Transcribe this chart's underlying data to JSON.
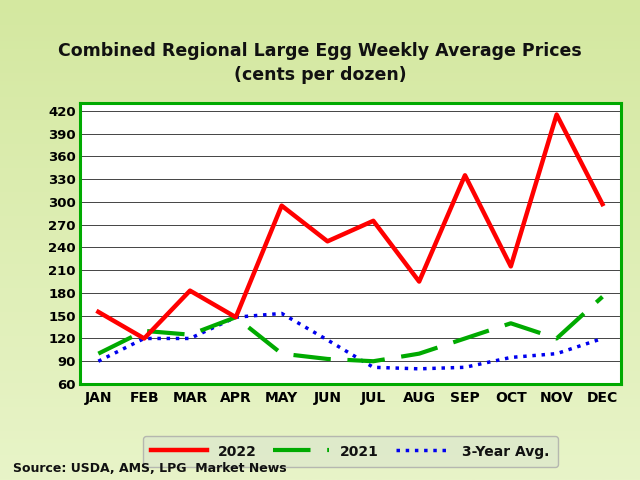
{
  "title_line1": "Combined Regional Large Egg Weekly Average Prices",
  "title_line2": "(cents per dozen)",
  "source": "Source: USDA, AMS, LPG  Market News",
  "months": [
    "JAN",
    "FEB",
    "MAR",
    "APR",
    "MAY",
    "JUN",
    "JUL",
    "AUG",
    "SEP",
    "OCT",
    "NOV",
    "DEC"
  ],
  "data_2022": [
    155,
    120,
    183,
    148,
    295,
    248,
    275,
    195,
    335,
    215,
    415,
    297
  ],
  "data_2021": [
    100,
    130,
    125,
    148,
    100,
    93,
    90,
    100,
    120,
    140,
    120,
    175
  ],
  "data_3yr": [
    90,
    120,
    120,
    148,
    153,
    118,
    82,
    80,
    82,
    95,
    100,
    120
  ],
  "color_2022": "#FF0000",
  "color_2021": "#00AA00",
  "color_3yr": "#0000EE",
  "ylim": [
    60,
    430
  ],
  "yticks": [
    60,
    90,
    120,
    150,
    180,
    210,
    240,
    270,
    300,
    330,
    360,
    390,
    420
  ],
  "bg_outer_top": "#d4e8a0",
  "bg_outer_bottom": "#e8f0c0",
  "bg_chart": "#FFFFFF",
  "legend_label_2022": "2022",
  "legend_label_2021": "2021",
  "legend_label_3yr": "3-Year Avg.",
  "spine_color": "#00AA00"
}
